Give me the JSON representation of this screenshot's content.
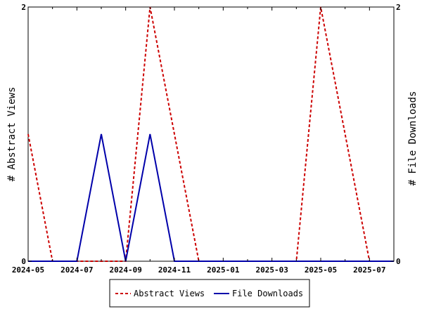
{
  "chart_data": {
    "type": "line",
    "x": [
      "2024-05",
      "2024-06",
      "2024-07",
      "2024-08",
      "2024-09",
      "2024-10",
      "2024-11",
      "2024-12",
      "2025-01",
      "2025-02",
      "2025-03",
      "2025-04",
      "2025-05",
      "2025-06",
      "2025-07",
      "2025-08"
    ],
    "x_ticks": [
      "2024-05",
      "2024-07",
      "2024-09",
      "2024-11",
      "2025-01",
      "2025-03",
      "2025-05",
      "2025-07"
    ],
    "series": [
      {
        "name": "Abstract Views",
        "axis": "left",
        "color": "#cc0000",
        "dash": "dashed",
        "values": [
          1,
          0,
          0,
          0,
          0,
          2,
          1,
          0,
          0,
          0,
          0,
          0,
          2,
          1,
          0,
          0
        ]
      },
      {
        "name": "File Downloads",
        "axis": "right",
        "color": "#0000aa",
        "dash": "solid",
        "values": [
          0,
          0,
          0,
          1,
          0,
          1,
          0,
          0,
          0,
          0,
          0,
          0,
          0,
          0,
          0,
          0
        ]
      }
    ],
    "ylabel": "# Abstract Views",
    "y2label": "# File Downloads",
    "ylim": [
      0,
      2
    ],
    "y2lim": [
      0,
      2
    ],
    "y_ticks": [
      "0",
      "2"
    ],
    "y2_ticks": [
      "0",
      "2"
    ],
    "grid": false,
    "legend_position": "bottom"
  }
}
